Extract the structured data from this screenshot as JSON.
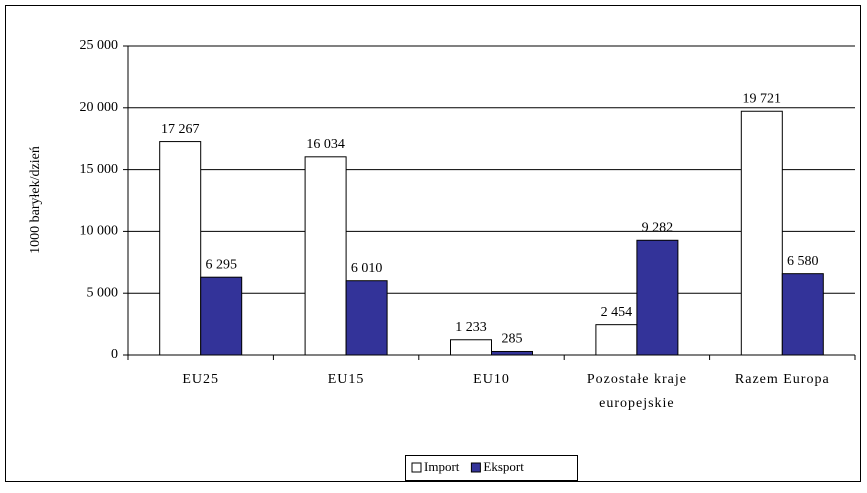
{
  "chart_data": {
    "type": "bar",
    "y_label": "1000 baryłek/dzień",
    "categories": [
      "EU25",
      "EU15",
      "EU10",
      "Pozostałe kraje europejskie",
      "Razem Europa"
    ],
    "series": [
      {
        "name": "Import",
        "color": "#ffffff",
        "values": [
          17267,
          16034,
          1233,
          2454,
          19721
        ],
        "value_labels": [
          "17 267",
          "16 034",
          "1 233",
          "2 454",
          "19 721"
        ]
      },
      {
        "name": "Eksport",
        "color": "#333399",
        "values": [
          6295,
          6010,
          285,
          9282,
          6580
        ],
        "value_labels": [
          "6 295",
          "6 010",
          "285",
          "9 282",
          "6 580"
        ]
      }
    ],
    "ylim": [
      0,
      25000
    ],
    "yticks": [
      0,
      {
        "value": 5000,
        "label": "5 000"
      },
      {
        "value": 10000,
        "label": "10 000"
      },
      {
        "value": 15000,
        "label": "15 000"
      },
      {
        "value": 20000,
        "label": "20 000"
      },
      {
        "value": 25000,
        "label": "25 000"
      }
    ],
    "grid": true,
    "legend": "bottom"
  }
}
